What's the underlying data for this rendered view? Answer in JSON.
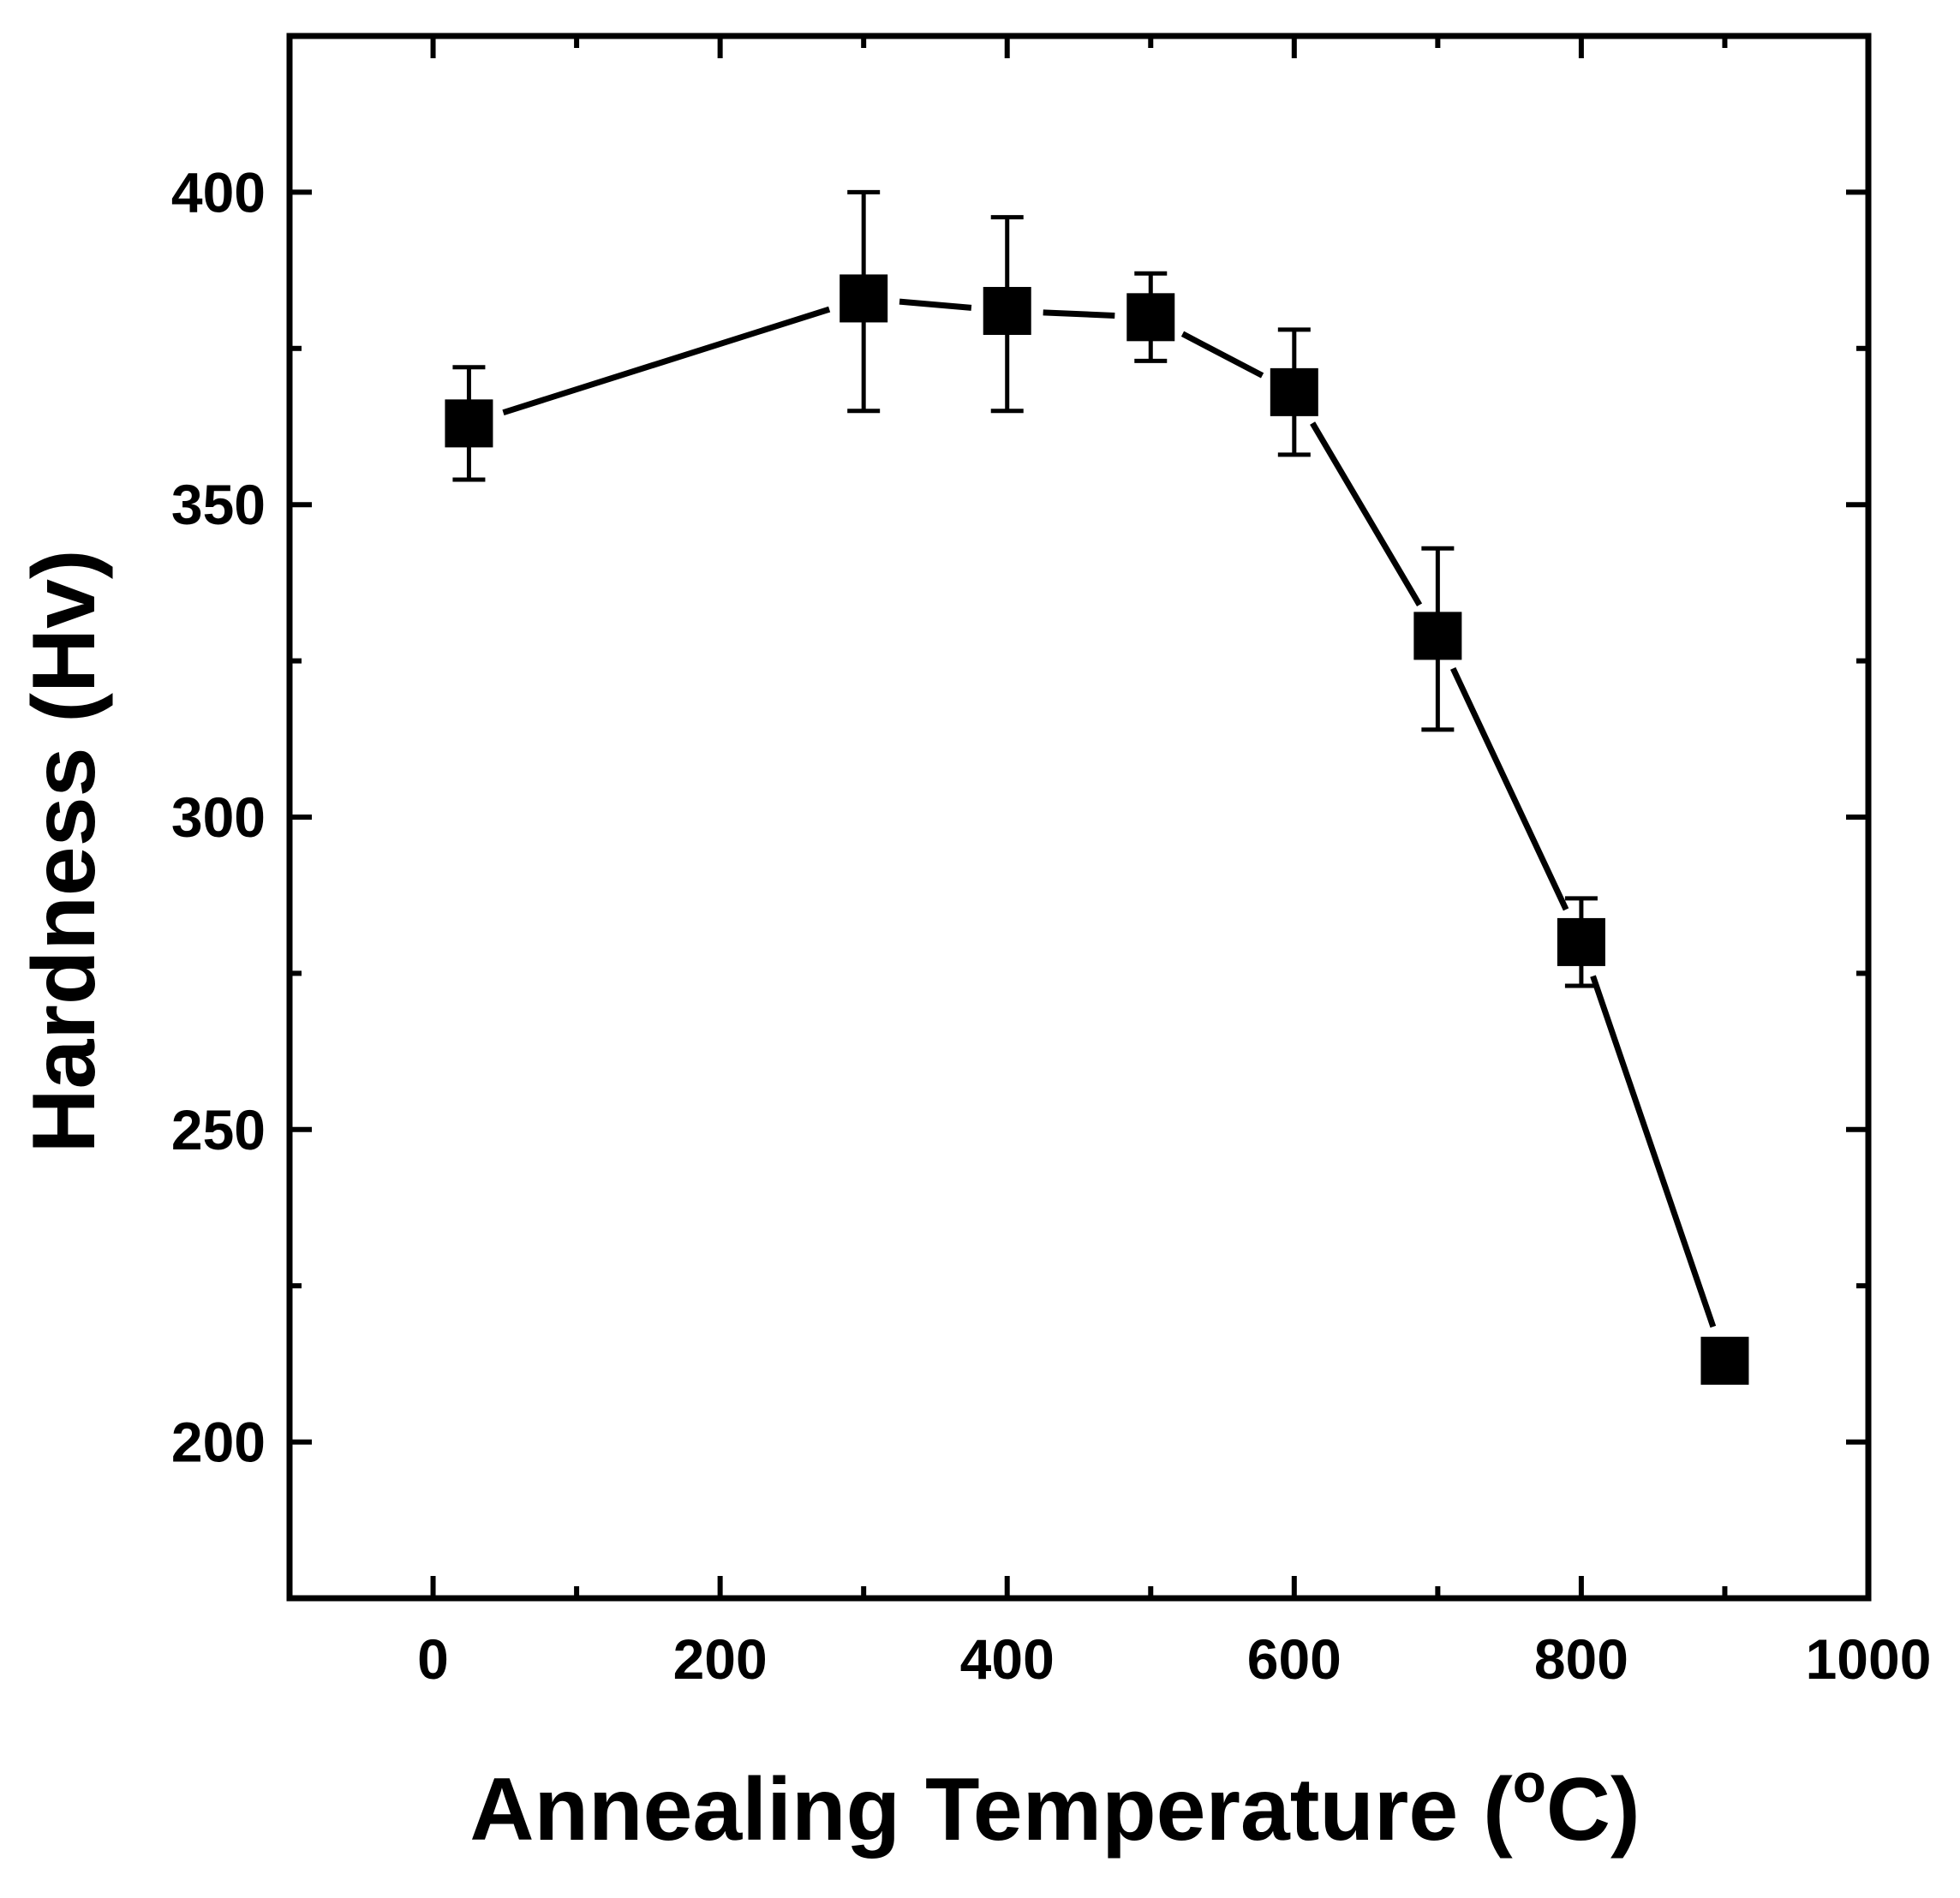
{
  "chart_data": {
    "type": "line",
    "title": "",
    "xlabel": "Annealing Temperature (",
    "xlabel_degree": "o",
    "xlabel_unit": "C)",
    "ylabel": "Hardness (Hv)",
    "xlim": [
      -100,
      1000
    ],
    "ylim": [
      175,
      425
    ],
    "x_ticks": [
      {
        "value": 0,
        "label": "0"
      },
      {
        "value": 200,
        "label": "200"
      },
      {
        "value": 400,
        "label": "400"
      },
      {
        "value": 600,
        "label": "600"
      },
      {
        "value": 800,
        "label": "800"
      },
      {
        "value": 1000,
        "label": "1000"
      }
    ],
    "x_minor_ticks": [
      100,
      300,
      500,
      700,
      900
    ],
    "y_ticks": [
      {
        "value": 200,
        "label": "200"
      },
      {
        "value": 250,
        "label": "250"
      },
      {
        "value": 300,
        "label": "300"
      },
      {
        "value": 350,
        "label": "350"
      },
      {
        "value": 400,
        "label": "400"
      }
    ],
    "y_minor_ticks": [
      225,
      275,
      325,
      375
    ],
    "grid": false,
    "legend": "none",
    "series": [
      {
        "name": "Hardness",
        "marker": "square",
        "color": "#000000",
        "points": [
          {
            "x": 25,
            "y": 363,
            "err_low": 354,
            "err_high": 372
          },
          {
            "x": 300,
            "y": 383,
            "err_low": 365,
            "err_high": 400
          },
          {
            "x": 400,
            "y": 381,
            "err_low": 365,
            "err_high": 396
          },
          {
            "x": 500,
            "y": 380,
            "err_low": 373,
            "err_high": 387
          },
          {
            "x": 600,
            "y": 368,
            "err_low": 358,
            "err_high": 378
          },
          {
            "x": 700,
            "y": 329,
            "err_low": 314,
            "err_high": 343
          },
          {
            "x": 800,
            "y": 280,
            "err_low": 273,
            "err_high": 287
          },
          {
            "x": 900,
            "y": 213,
            "err_low": 213,
            "err_high": 213
          }
        ]
      }
    ]
  }
}
